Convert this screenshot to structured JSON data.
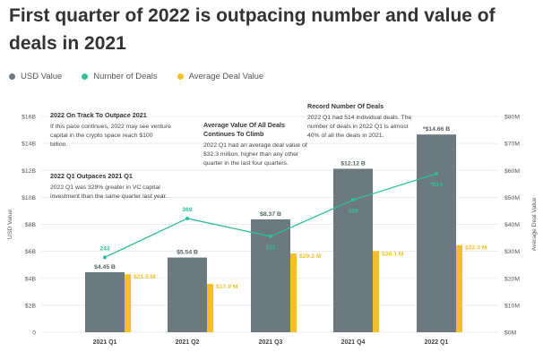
{
  "title": "First quarter of 2022 is outpacing number and value of deals in 2021",
  "legend": [
    {
      "label": "USD Value",
      "color": "#6c7a80"
    },
    {
      "label": "Number of Deals",
      "color": "#2fbf9a"
    },
    {
      "label": "Average Deal Value",
      "color": "#f5bf2b"
    }
  ],
  "colors": {
    "usd": "#6c7a80",
    "deals": "#2fbf9a",
    "avg": "#f5bf2b",
    "grid": "#e6e6e6"
  },
  "annotations": {
    "a1": {
      "head": "2022 On Track To Outpace 2021",
      "body": "If this pace continues, 2022 may see venture capital in the crypto space reach $100 billion."
    },
    "a2": {
      "head": "2022 Q1 Outpaces 2021 Q1",
      "body": "2022 Q1 was 329% greater in VC capital investment than the same quarter last year."
    },
    "a3": {
      "head": "Average Value Of All Deals Continues To Climb",
      "body": "2022 Q1 had an average deal value of $32.3 million, higher than any other quarter in the last four quarters."
    },
    "a4": {
      "head": "Record Number Of Deals",
      "body": "2022 Q1 had 514 individual deals. The number of deals in 2022 Q1 is almost 40% of all the deals in 2021."
    }
  },
  "chart_data": {
    "type": "bar",
    "categories": [
      "2021 Q1",
      "2021 Q2",
      "2021 Q3",
      "2021 Q4",
      "2022 Q1"
    ],
    "ylabel": "USD Value",
    "y2label": "Average Deal Value",
    "ylim": [
      0,
      16
    ],
    "y2lim": [
      0,
      80
    ],
    "y_ticks": [
      "0",
      "$2B",
      "$4B",
      "$6B",
      "$8B",
      "$10B",
      "$12B",
      "$14B",
      "$16B"
    ],
    "y2_ticks": [
      "$0M",
      "$10M",
      "$20M",
      "$30M",
      "$40M",
      "$50M",
      "$60M",
      "$70M",
      "$80M"
    ],
    "series": [
      {
        "name": "USD Value",
        "unit": "B",
        "values": [
          4.45,
          5.54,
          8.37,
          12.12,
          14.66
        ],
        "labels": [
          "$4.45 B",
          "$5.54 B",
          "$8.37 B",
          "$12.12 B",
          "*$14.66 B"
        ]
      },
      {
        "name": "Number of Deals",
        "values": [
          243,
          369,
          311,
          429,
          514
        ],
        "labels": [
          "243",
          "369",
          "311",
          "429",
          "*514"
        ]
      },
      {
        "name": "Average Deal Value",
        "unit": "M",
        "values": [
          21.5,
          17.9,
          29.2,
          30.1,
          32.3
        ],
        "labels": [
          "$21.5 M",
          "$17.9 M",
          "$29.2 M",
          "$30.1 M",
          "$32.3 M"
        ]
      }
    ]
  }
}
